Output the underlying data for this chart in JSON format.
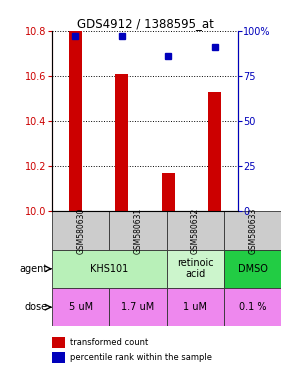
{
  "title": "GDS4912 / 1388595_at",
  "samples": [
    "GSM580630",
    "GSM580631",
    "GSM580632",
    "GSM580633"
  ],
  "red_values": [
    10.8,
    10.61,
    10.17,
    10.53
  ],
  "blue_pct": [
    97,
    97,
    86,
    91
  ],
  "ylim": [
    10.0,
    10.8
  ],
  "y_ticks_left": [
    10.0,
    10.2,
    10.4,
    10.6,
    10.8
  ],
  "y_ticks_right": [
    0,
    25,
    50,
    75,
    100
  ],
  "y_tick_labels_right": [
    "0",
    "25",
    "50",
    "75",
    "100%"
  ],
  "bar_color": "#cc0000",
  "dot_color": "#0000bb",
  "bar_bottom": 10.0,
  "agent_merged": [
    {
      "label": "KHS101",
      "cols": [
        0,
        1
      ],
      "color": "#b8f0b8"
    },
    {
      "label": "retinoic\nacid",
      "cols": [
        2,
        2
      ],
      "color": "#ccf5cc"
    },
    {
      "label": "DMSO",
      "cols": [
        3,
        3
      ],
      "color": "#22cc44"
    }
  ],
  "dose_labels": [
    "5 uM",
    "1.7 uM",
    "1 uM",
    "0.1 %"
  ],
  "dose_color": "#ee88ee",
  "sample_color": "#cccccc",
  "legend_red": "transformed count",
  "legend_blue": "percentile rank within the sample",
  "bar_width": 0.28
}
